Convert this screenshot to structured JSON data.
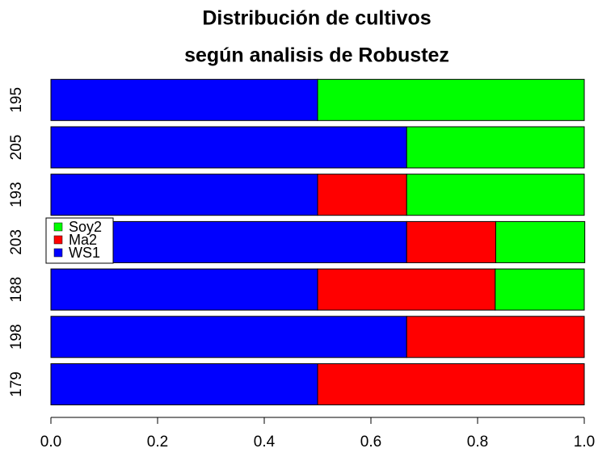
{
  "chart_data": {
    "type": "stacked-barh",
    "title": [
      "Distribución de cultivos",
      "según analisis de Robustez"
    ],
    "categories": [
      "179",
      "198",
      "188",
      "203",
      "193",
      "205",
      "195"
    ],
    "series": [
      {
        "name": "WS1",
        "color": "#0000ff",
        "values": [
          0.5,
          0.667,
          0.5,
          0.667,
          0.5,
          0.667,
          0.5
        ]
      },
      {
        "name": "Ma2",
        "color": "#ff0000",
        "values": [
          0.5,
          0.333,
          0.333,
          0.167,
          0.167,
          0,
          0
        ]
      },
      {
        "name": "Soy2",
        "color": "#00ff00",
        "values": [
          0,
          0,
          0.167,
          0.167,
          0.333,
          0.333,
          0.5
        ]
      }
    ],
    "xlim": [
      0,
      1
    ],
    "xticks": [
      {
        "value": 0,
        "label": "0.0"
      },
      0.2,
      0.4,
      0.6,
      0.8,
      {
        "value": 1,
        "label": "1.0"
      }
    ],
    "legend": "left"
  }
}
